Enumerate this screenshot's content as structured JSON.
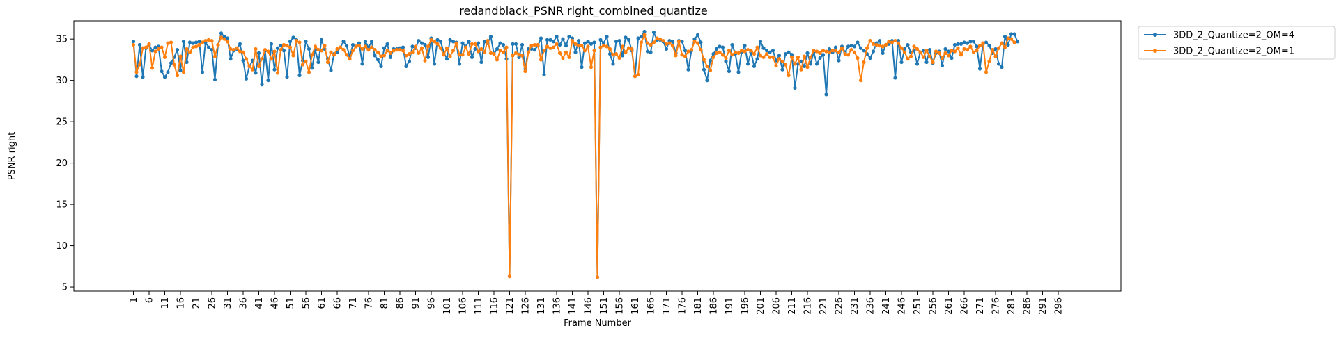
{
  "chart_data": {
    "type": "line",
    "title": "redandblack_PSNR right_combined_quantize",
    "xlabel": "Frame Number",
    "ylabel": "PSNR right",
    "xlim": [
      -18,
      316
    ],
    "ylim": [
      4.5,
      37.2
    ],
    "xticks": [
      1,
      6,
      11,
      16,
      21,
      26,
      31,
      36,
      41,
      46,
      51,
      56,
      61,
      66,
      71,
      76,
      81,
      86,
      91,
      96,
      101,
      106,
      111,
      116,
      121,
      126,
      131,
      136,
      141,
      146,
      151,
      156,
      161,
      166,
      171,
      176,
      181,
      186,
      191,
      196,
      201,
      206,
      211,
      216,
      221,
      226,
      231,
      236,
      241,
      246,
      251,
      256,
      261,
      266,
      271,
      276,
      281,
      286,
      291,
      296
    ],
    "yticks": [
      5,
      10,
      15,
      20,
      25,
      30,
      35
    ],
    "grid": false,
    "legend_position": "outside-top-right",
    "x_start": 1,
    "series": [
      {
        "name": "3DD_2_Quantize=2_OM=4",
        "color": "#1f77b4",
        "values": [
          34.7,
          30.5,
          34.3,
          30.4,
          33.9,
          34.3,
          33.6,
          34.0,
          34.1,
          31.1,
          30.4,
          31.0,
          32.1,
          32.8,
          33.7,
          31.2,
          34.7,
          32.2,
          34.6,
          34.5,
          34.6,
          34.7,
          31.0,
          34.6,
          34.0,
          33.7,
          30.1,
          34.3,
          35.7,
          35.3,
          35.1,
          32.6,
          33.6,
          33.8,
          34.4,
          32.4,
          30.2,
          31.7,
          32.4,
          30.9,
          33.3,
          29.5,
          33.6,
          30.0,
          34.4,
          31.3,
          33.9,
          34.2,
          33.6,
          30.4,
          34.7,
          35.2,
          34.9,
          30.6,
          32.4,
          34.7,
          33.8,
          31.5,
          33.7,
          32.2,
          34.9,
          33.8,
          32.6,
          31.2,
          33.2,
          33.4,
          34.0,
          34.7,
          34.2,
          32.9,
          34.3,
          34.1,
          34.5,
          32.0,
          34.7,
          34.0,
          34.7,
          33.0,
          32.5,
          31.7,
          33.9,
          34.4,
          32.8,
          33.8,
          33.8,
          33.9,
          34.0,
          31.7,
          32.3,
          34.1,
          33.9,
          34.8,
          34.5,
          34.3,
          32.8,
          35.1,
          32.0,
          34.9,
          34.7,
          33.4,
          32.6,
          34.9,
          34.7,
          34.6,
          32.0,
          34.5,
          34.1,
          34.7,
          32.8,
          33.8,
          34.5,
          32.2,
          34.7,
          34.5,
          35.3,
          33.2,
          33.8,
          34.5,
          34.3,
          32.6,
          6.3,
          34.4,
          34.4,
          32.8,
          34.3,
          31.4,
          33.8,
          33.8,
          33.7,
          34.2,
          35.1,
          30.7,
          34.9,
          34.9,
          34.7,
          35.3,
          34.3,
          35.0,
          34.2,
          35.3,
          35.1,
          33.4,
          34.8,
          31.6,
          34.5,
          34.7,
          34.4,
          34.6,
          6.2,
          34.9,
          34.5,
          35.3,
          33.2,
          32.0,
          34.7,
          34.8,
          33.0,
          35.2,
          34.9,
          33.6,
          30.5,
          35.1,
          35.3,
          35.9,
          33.5,
          33.4,
          35.8,
          34.9,
          34.9,
          34.7,
          33.8,
          34.8,
          34.7,
          33.3,
          34.8,
          34.7,
          33.6,
          31.3,
          33.6,
          35.0,
          35.5,
          34.6,
          31.3,
          30.0,
          32.4,
          33.2,
          33.8,
          34.1,
          34.0,
          32.3,
          31.1,
          34.3,
          33.2,
          31.0,
          33.4,
          34.2,
          32.0,
          33.4,
          31.7,
          32.6,
          34.7,
          33.9,
          33.6,
          33.4,
          33.6,
          32.4,
          33.0,
          31.3,
          33.2,
          33.4,
          33.1,
          29.1,
          32.0,
          32.3,
          31.7,
          33.3,
          32.0,
          33.4,
          32.0,
          32.7,
          33.1,
          28.3,
          33.8,
          33.4,
          34.0,
          32.4,
          34.1,
          33.4,
          34.1,
          34.2,
          34.1,
          34.6,
          33.9,
          33.6,
          33.2,
          32.7,
          33.5,
          34.5,
          34.8,
          33.3,
          34.3,
          34.4,
          34.8,
          30.3,
          34.8,
          32.2,
          33.8,
          34.3,
          33.4,
          33.6,
          32.0,
          33.4,
          33.6,
          32.2,
          33.7,
          32.1,
          33.3,
          33.5,
          31.8,
          33.8,
          33.5,
          32.7,
          34.3,
          34.4,
          34.4,
          34.6,
          34.5,
          34.7,
          34.7,
          34.1,
          31.4,
          34.4,
          34.6,
          34.2,
          33.3,
          33.8,
          32.0,
          31.6,
          35.3,
          34.3,
          35.6,
          35.6,
          34.7
        ]
      },
      {
        "name": "3DD_2_Quantize=2_OM=1",
        "color": "#ff7f0e",
        "values": [
          34.3,
          31.0,
          31.9,
          33.9,
          34.0,
          34.4,
          31.5,
          33.5,
          33.8,
          34.0,
          32.8,
          34.5,
          34.6,
          31.9,
          30.6,
          32.9,
          31.0,
          33.8,
          33.4,
          34.0,
          34.1,
          34.3,
          34.6,
          34.8,
          34.9,
          34.8,
          32.9,
          34.3,
          35.2,
          35.0,
          34.7,
          33.8,
          33.7,
          33.9,
          33.5,
          33.4,
          32.6,
          31.7,
          31.3,
          33.8,
          31.7,
          32.6,
          33.7,
          33.5,
          32.6,
          33.5,
          30.9,
          33.7,
          34.3,
          34.2,
          34.0,
          33.0,
          34.8,
          34.6,
          31.9,
          32.3,
          31.0,
          33.1,
          34.1,
          33.7,
          33.6,
          34.2,
          32.2,
          33.4,
          33.1,
          33.8,
          34.0,
          33.7,
          33.1,
          32.6,
          33.6,
          34.1,
          34.2,
          33.8,
          34.1,
          33.7,
          34.0,
          33.7,
          33.4,
          32.9,
          33.0,
          33.6,
          33.3,
          33.6,
          33.7,
          33.7,
          33.6,
          33.0,
          33.2,
          33.4,
          34.1,
          33.3,
          33.9,
          32.4,
          34.1,
          34.9,
          34.7,
          34.4,
          33.9,
          33.1,
          33.9,
          32.9,
          33.6,
          34.5,
          33.1,
          33.1,
          34.0,
          33.2,
          34.4,
          34.4,
          33.5,
          33.8,
          33.4,
          34.8,
          33.3,
          33.2,
          32.5,
          33.6,
          33.4,
          34.0,
          6.3,
          33.0,
          33.3,
          33.1,
          33.0,
          31.1,
          33.4,
          34.2,
          34.3,
          34.3,
          32.5,
          33.6,
          34.1,
          33.9,
          34.0,
          34.4,
          33.3,
          32.7,
          33.4,
          32.8,
          34.8,
          34.4,
          34.2,
          34.2,
          33.6,
          34.1,
          31.6,
          33.6,
          6.2,
          34.0,
          34.2,
          34.1,
          33.8,
          33.1,
          33.2,
          32.7,
          34.1,
          33.4,
          33.9,
          33.8,
          30.5,
          30.7,
          34.6,
          35.5,
          34.5,
          34.3,
          34.6,
          35.1,
          35.0,
          34.8,
          34.4,
          34.5,
          34.2,
          33.0,
          34.7,
          33.1,
          32.9,
          33.5,
          33.7,
          34.7,
          34.5,
          33.7,
          32.5,
          31.7,
          31.2,
          32.8,
          33.3,
          33.4,
          33.1,
          32.7,
          33.6,
          33.1,
          33.4,
          33.3,
          33.6,
          33.5,
          33.7,
          33.6,
          33.2,
          34.0,
          33.0,
          32.8,
          33.2,
          32.8,
          32.8,
          31.8,
          32.6,
          32.3,
          31.9,
          30.6,
          32.8,
          32.0,
          32.8,
          31.3,
          32.9,
          31.6,
          32.8,
          33.6,
          33.5,
          33.3,
          33.6,
          33.5,
          33.4,
          33.6,
          33.6,
          33.4,
          33.9,
          33.2,
          33.1,
          33.7,
          33.4,
          32.7,
          30.0,
          32.2,
          33.9,
          34.8,
          34.4,
          34.3,
          34.2,
          34.1,
          34.3,
          34.7,
          34.6,
          34.8,
          34.5,
          33.9,
          33.4,
          32.6,
          32.9,
          34.1,
          33.8,
          33.4,
          32.8,
          33.6,
          32.9,
          32.2,
          33.5,
          33.3,
          32.7,
          33.3,
          33.0,
          33.6,
          33.5,
          33.9,
          33.1,
          33.8,
          33.7,
          34.1,
          33.4,
          33.6,
          34.2,
          34.5,
          31.0,
          32.3,
          33.7,
          32.9,
          33.9,
          34.5,
          34.0,
          35.1,
          35.0,
          34.6
        ]
      }
    ]
  }
}
